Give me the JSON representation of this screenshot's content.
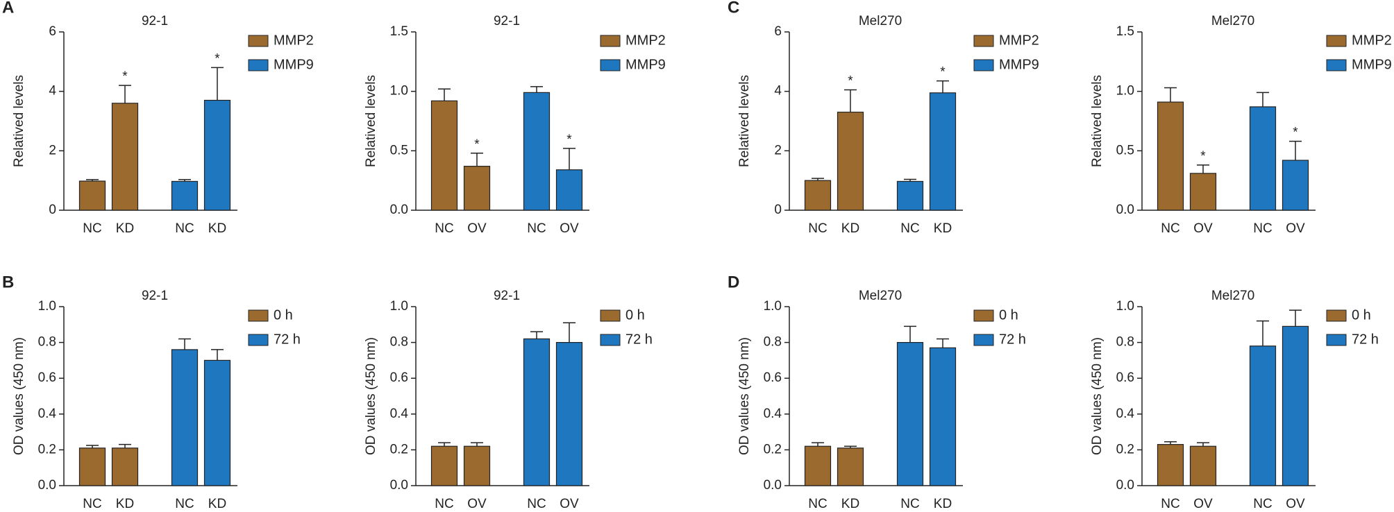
{
  "chart_data": [
    {
      "type": "bar",
      "panel": "A",
      "title": "92-1",
      "ylabel": "Relatived levels",
      "categories": [
        "NC",
        "KD"
      ],
      "series": [
        {
          "name": "MMP2",
          "color": "#9b6a2f",
          "values": [
            0.98,
            3.6
          ],
          "errors": [
            0.05,
            0.6
          ],
          "significance": [
            null,
            "*"
          ]
        },
        {
          "name": "MMP9",
          "color": "#1f77c0",
          "values": [
            0.97,
            3.7
          ],
          "errors": [
            0.06,
            1.1
          ],
          "significance": [
            null,
            "*"
          ]
        }
      ],
      "ylim": [
        0,
        6
      ],
      "yticks": [
        0,
        2,
        4,
        6
      ]
    },
    {
      "type": "bar",
      "title": "92-1",
      "ylabel": "Relatived levels",
      "categories": [
        "NC",
        "OV"
      ],
      "series": [
        {
          "name": "MMP2",
          "color": "#9b6a2f",
          "values": [
            0.92,
            0.37
          ],
          "errors": [
            0.1,
            0.11
          ],
          "significance": [
            null,
            "*"
          ]
        },
        {
          "name": "MMP9",
          "color": "#1f77c0",
          "values": [
            0.99,
            0.34
          ],
          "errors": [
            0.05,
            0.18
          ],
          "significance": [
            null,
            "*"
          ]
        }
      ],
      "ylim": [
        0,
        1.5
      ],
      "yticks": [
        {
          "value": 0,
          "label": "0.0"
        },
        0.5,
        {
          "value": 1,
          "label": "1.0"
        },
        1.5
      ]
    },
    {
      "type": "bar",
      "panel": "C",
      "title": "Mel270",
      "ylabel": "Relatived levels",
      "categories": [
        "NC",
        "KD"
      ],
      "series": [
        {
          "name": "MMP2",
          "color": "#9b6a2f",
          "values": [
            1.0,
            3.3
          ],
          "errors": [
            0.07,
            0.75
          ],
          "significance": [
            null,
            "*"
          ]
        },
        {
          "name": "MMP9",
          "color": "#1f77c0",
          "values": [
            0.97,
            3.95
          ],
          "errors": [
            0.07,
            0.4
          ],
          "significance": [
            null,
            "*"
          ]
        }
      ],
      "ylim": [
        0,
        6
      ],
      "yticks": [
        0,
        2,
        4,
        6
      ]
    },
    {
      "type": "bar",
      "title": "Mel270",
      "ylabel": "Relatived levels",
      "categories": [
        "NC",
        "OV"
      ],
      "series": [
        {
          "name": "MMP2",
          "color": "#9b6a2f",
          "values": [
            0.91,
            0.31
          ],
          "errors": [
            0.12,
            0.07
          ],
          "significance": [
            null,
            "*"
          ]
        },
        {
          "name": "MMP9",
          "color": "#1f77c0",
          "values": [
            0.87,
            0.42
          ],
          "errors": [
            0.12,
            0.16
          ],
          "significance": [
            null,
            "*"
          ]
        }
      ],
      "ylim": [
        0,
        1.5
      ],
      "yticks": [
        {
          "value": 0,
          "label": "0.0"
        },
        0.5,
        {
          "value": 1,
          "label": "1.0"
        },
        1.5
      ]
    },
    {
      "type": "bar",
      "panel": "B",
      "title": "92-1",
      "ylabel": "OD values (450 nm)",
      "categories": [
        "NC",
        "KD"
      ],
      "series": [
        {
          "name": "0 h",
          "color": "#9b6a2f",
          "values": [
            0.21,
            0.21
          ],
          "errors": [
            0.015,
            0.02
          ]
        },
        {
          "name": "72 h",
          "color": "#1f77c0",
          "values": [
            0.76,
            0.7
          ],
          "errors": [
            0.06,
            0.06
          ]
        }
      ],
      "ylim": [
        0,
        1
      ],
      "yticks": [
        {
          "value": 0,
          "label": "0.0"
        },
        0.2,
        0.4,
        0.6,
        0.8,
        {
          "value": 1,
          "label": "1.0"
        }
      ]
    },
    {
      "type": "bar",
      "title": "92-1",
      "ylabel": "OD values (450 nm)",
      "categories": [
        "NC",
        "OV"
      ],
      "series": [
        {
          "name": "0 h",
          "color": "#9b6a2f",
          "values": [
            0.22,
            0.22
          ],
          "errors": [
            0.02,
            0.02
          ]
        },
        {
          "name": "72 h",
          "color": "#1f77c0",
          "values": [
            0.82,
            0.8
          ],
          "errors": [
            0.04,
            0.11
          ]
        }
      ],
      "ylim": [
        0,
        1
      ],
      "yticks": [
        {
          "value": 0,
          "label": "0.0"
        },
        0.2,
        0.4,
        0.6,
        0.8,
        {
          "value": 1,
          "label": "1.0"
        }
      ]
    },
    {
      "type": "bar",
      "panel": "D",
      "title": "Mel270",
      "ylabel": "OD values (450 nm)",
      "categories": [
        "NC",
        "KD"
      ],
      "series": [
        {
          "name": "0 h",
          "color": "#9b6a2f",
          "values": [
            0.22,
            0.21
          ],
          "errors": [
            0.02,
            0.01
          ]
        },
        {
          "name": "72 h",
          "color": "#1f77c0",
          "values": [
            0.8,
            0.77
          ],
          "errors": [
            0.09,
            0.05
          ]
        }
      ],
      "ylim": [
        0,
        1
      ],
      "yticks": [
        {
          "value": 0,
          "label": "0.0"
        },
        0.2,
        0.4,
        0.6,
        0.8,
        {
          "value": 1,
          "label": "1.0"
        }
      ]
    },
    {
      "type": "bar",
      "title": "Mel270",
      "ylabel": "OD values (450 nm)",
      "categories": [
        "NC",
        "OV"
      ],
      "series": [
        {
          "name": "0 h",
          "color": "#9b6a2f",
          "values": [
            0.23,
            0.22
          ],
          "errors": [
            0.015,
            0.02
          ]
        },
        {
          "name": "72 h",
          "color": "#1f77c0",
          "values": [
            0.78,
            0.89
          ],
          "errors": [
            0.14,
            0.09
          ]
        }
      ],
      "ylim": [
        0,
        1
      ],
      "yticks": [
        {
          "value": 0,
          "label": "0.0"
        },
        0.2,
        0.4,
        0.6,
        0.8,
        {
          "value": 1,
          "label": "1.0"
        }
      ]
    }
  ]
}
